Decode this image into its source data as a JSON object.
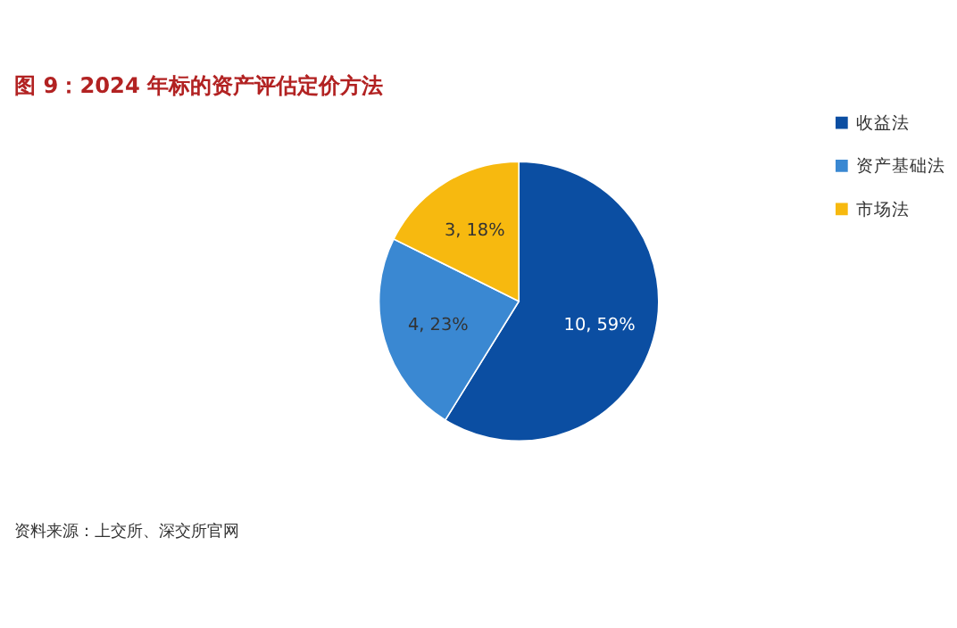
{
  "chart_data": {
    "type": "pie",
    "title": "图 9：2024 年标的资产评估定价方法",
    "categories": [
      "收益法",
      "资产基础法",
      "市场法"
    ],
    "values": [
      10,
      4,
      3
    ],
    "colors": [
      "#0b4ea2",
      "#3a88d2",
      "#f7b90f"
    ],
    "value_labels": [
      "10, 59%",
      "4, 23%",
      "3, 18%"
    ],
    "legend": "right",
    "annotations": [
      "资料来源：上交所、深交所官网"
    ]
  }
}
